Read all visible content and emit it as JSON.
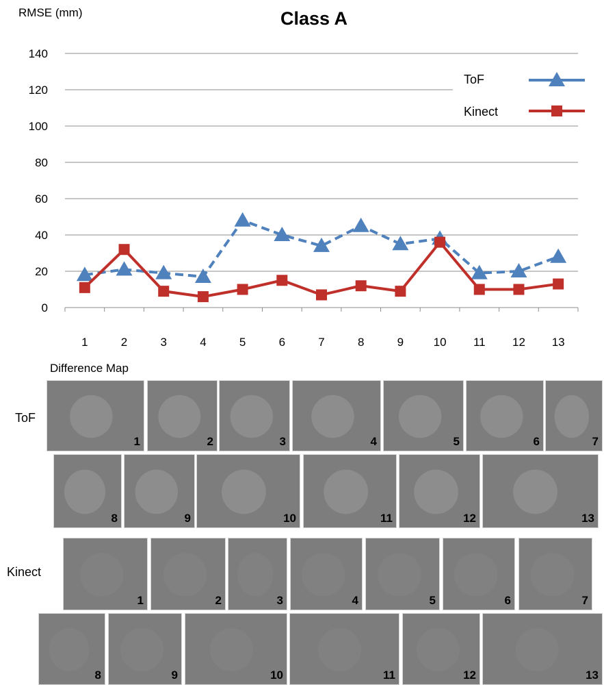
{
  "chart_data": {
    "type": "line",
    "title": "Class A",
    "ylabel": "RMSE (mm)",
    "xlabel": "",
    "categories": [
      "1",
      "2",
      "3",
      "4",
      "5",
      "6",
      "7",
      "8",
      "9",
      "10",
      "11",
      "12",
      "13"
    ],
    "ylim": [
      0,
      140
    ],
    "yticks": [
      0,
      20,
      40,
      60,
      80,
      100,
      120,
      140
    ],
    "grid": "horizontal",
    "legend_position": "top-right",
    "series": [
      {
        "name": "ToF",
        "color": "#4f81bd",
        "marker": "triangle",
        "style": "dashed",
        "values": [
          18,
          21,
          19,
          17,
          48,
          40,
          34,
          45,
          35,
          38,
          19,
          20,
          28
        ]
      },
      {
        "name": "Kinect",
        "color": "#c0302b",
        "marker": "square",
        "style": "solid",
        "values": [
          11,
          32,
          9,
          6,
          10,
          15,
          7,
          12,
          9,
          36,
          10,
          10,
          13
        ]
      }
    ]
  },
  "difference_map": {
    "heading": "Difference Map",
    "tof_label": "ToF",
    "kinect_label": "Kinect",
    "tof_row1": [
      "1",
      "2",
      "3",
      "4",
      "5",
      "6",
      "7"
    ],
    "tof_row2": [
      "8",
      "9",
      "10",
      "11",
      "12",
      "13"
    ],
    "kinect_row1": [
      "1",
      "2",
      "3",
      "4",
      "5",
      "6",
      "7"
    ],
    "kinect_row2": [
      "8",
      "9",
      "10",
      "11",
      "12",
      "13"
    ]
  }
}
